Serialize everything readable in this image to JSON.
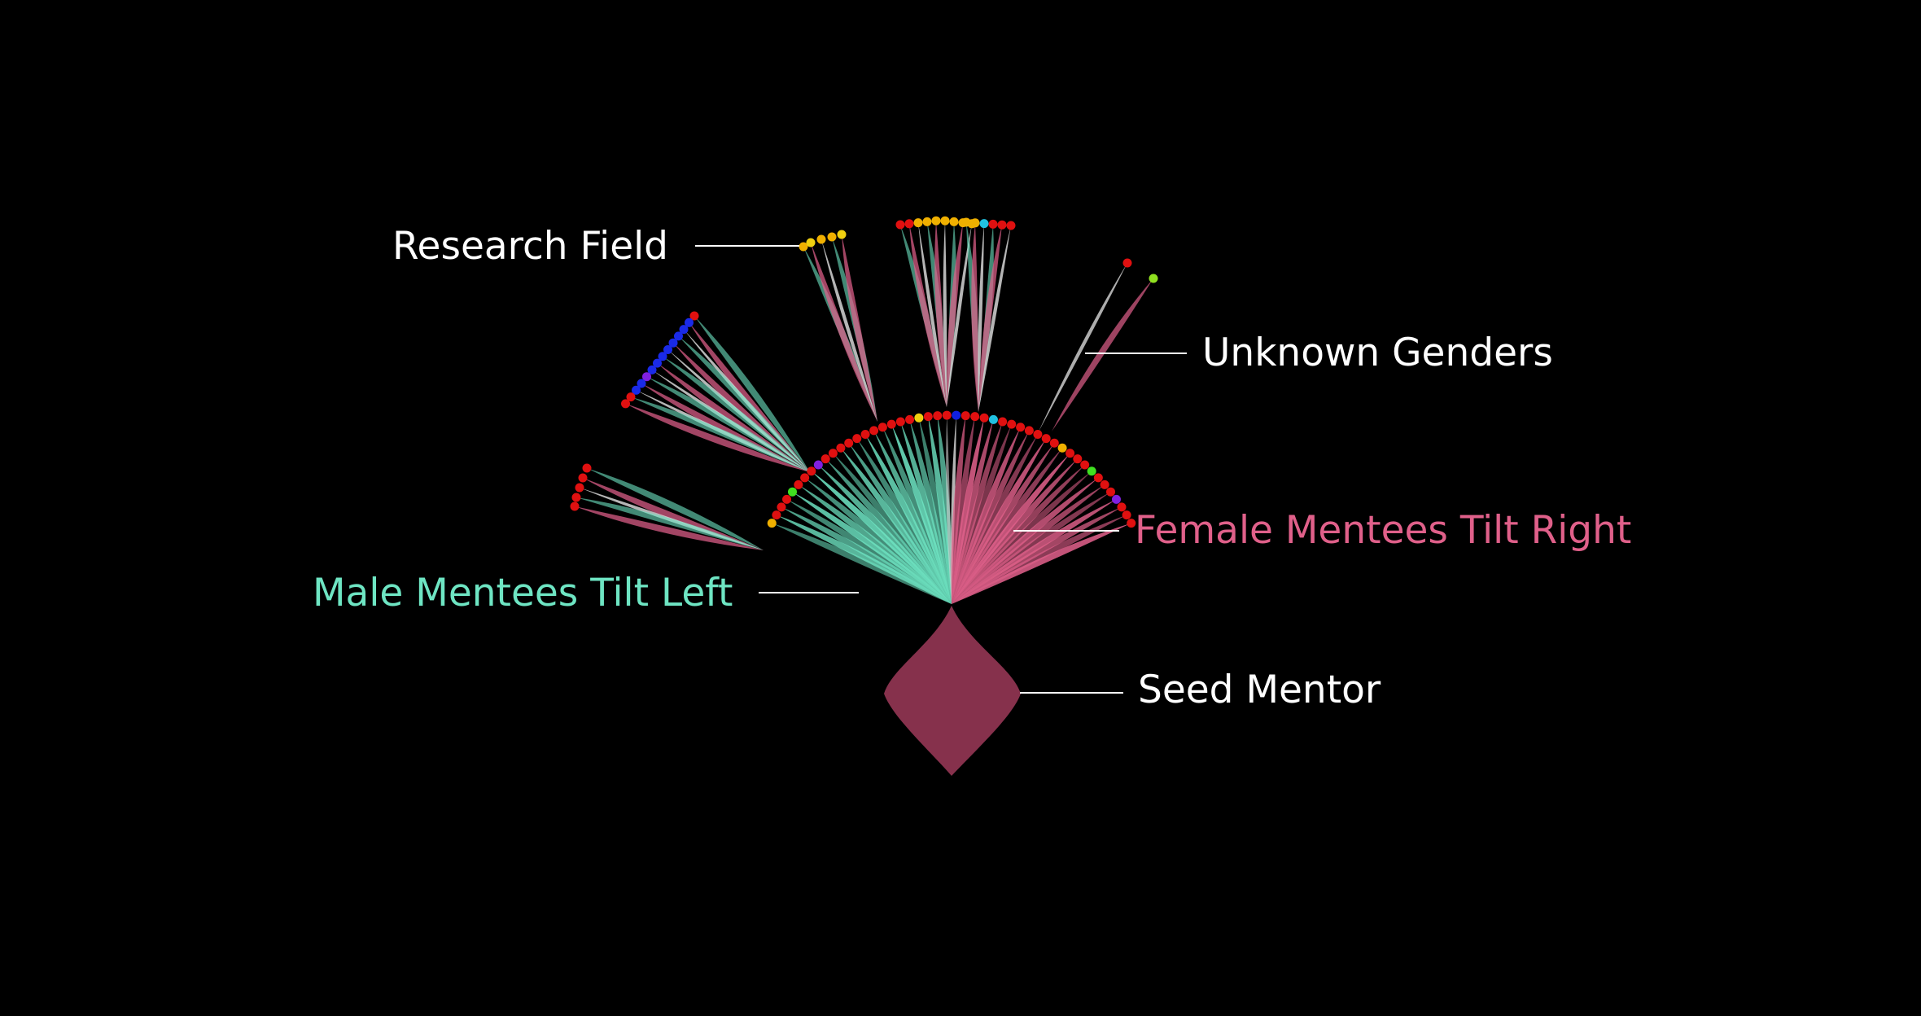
{
  "annotations": {
    "research_field": "Research Field",
    "unknown_genders": "Unknown Genders",
    "female_tilt": "Female Mentees Tilt Right",
    "male_tilt": "Male Mentees Tilt Left",
    "seed_mentor": "Seed Mentor"
  },
  "colors": {
    "background": "#000000",
    "male": "#6ee5c3",
    "female": "#e0608a",
    "unknown": "#d8d8d8",
    "seed": "#86314c",
    "label_default": "#ffffff",
    "label_male": "#6ee5c3",
    "label_female": "#e0608a",
    "leader_line": "#ffffff"
  },
  "legend_meaning": {
    "petal_tilt_left": "male",
    "petal_tilt_right": "female",
    "petal_vertical": "unknown"
  }
}
